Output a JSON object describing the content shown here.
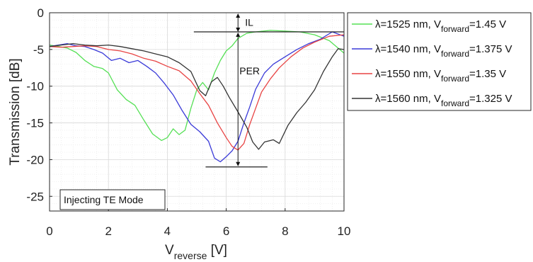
{
  "chart_data": {
    "type": "line",
    "xlabel_main": "V",
    "xlabel_sub": "reverse",
    "xlabel_unit": " [V]",
    "ylabel": "Transmission [dB]",
    "xlim": [
      0,
      10
    ],
    "ylim": [
      -27,
      0
    ],
    "x_ticks": [
      0,
      2,
      4,
      6,
      8,
      10
    ],
    "x_tick_labels": [
      "0",
      "2",
      "4",
      "6",
      "8",
      "10"
    ],
    "y_ticks": [
      0,
      -5,
      -10,
      -15,
      -20,
      -25
    ],
    "y_tick_labels": [
      "0",
      "-5",
      "-10",
      "-15",
      "-20",
      "-25"
    ],
    "grid": true,
    "legend_position": "outside-top-right",
    "series": [
      {
        "legend": {
          "lambda": "λ=1525 nm, V",
          "sub": "forward",
          "value": "=1.45 V"
        },
        "color": "#55e055",
        "points": [
          [
            0,
            -4.4
          ],
          [
            0.3,
            -4.6
          ],
          [
            0.6,
            -4.8
          ],
          [
            0.9,
            -5.4
          ],
          [
            1.2,
            -6.5
          ],
          [
            1.5,
            -7.3
          ],
          [
            1.8,
            -7.6
          ],
          [
            2.0,
            -8.2
          ],
          [
            2.3,
            -10.5
          ],
          [
            2.6,
            -11.8
          ],
          [
            2.9,
            -12.6
          ],
          [
            3.2,
            -14.6
          ],
          [
            3.5,
            -16.5
          ],
          [
            3.8,
            -17.4
          ],
          [
            4.0,
            -17.0
          ],
          [
            4.2,
            -15.8
          ],
          [
            4.4,
            -16.6
          ],
          [
            4.6,
            -16.0
          ],
          [
            4.8,
            -13.0
          ],
          [
            5.0,
            -10.5
          ],
          [
            5.2,
            -9.5
          ],
          [
            5.4,
            -10.5
          ],
          [
            5.6,
            -8.2
          ],
          [
            5.8,
            -6.5
          ],
          [
            6.0,
            -5.2
          ],
          [
            6.2,
            -4.5
          ],
          [
            6.4,
            -3.5
          ],
          [
            6.7,
            -2.8
          ],
          [
            7.0,
            -2.6
          ],
          [
            7.5,
            -2.4
          ],
          [
            8.0,
            -2.5
          ],
          [
            8.5,
            -2.6
          ],
          [
            9.0,
            -3.0
          ],
          [
            9.5,
            -3.8
          ],
          [
            10,
            -5.5
          ]
        ]
      },
      {
        "legend": {
          "lambda": "λ=1540 nm, V",
          "sub": "forward",
          "value": "=1.375 V"
        },
        "color": "#3a3ad8",
        "points": [
          [
            0,
            -4.6
          ],
          [
            0.3,
            -4.4
          ],
          [
            0.6,
            -4.2
          ],
          [
            0.9,
            -4.5
          ],
          [
            1.2,
            -4.6
          ],
          [
            1.5,
            -5.0
          ],
          [
            1.8,
            -5.5
          ],
          [
            2.1,
            -6.5
          ],
          [
            2.4,
            -6.2
          ],
          [
            2.7,
            -6.8
          ],
          [
            3.0,
            -6.5
          ],
          [
            3.3,
            -7.3
          ],
          [
            3.6,
            -8.2
          ],
          [
            3.9,
            -9.6
          ],
          [
            4.2,
            -11.2
          ],
          [
            4.5,
            -13.3
          ],
          [
            4.8,
            -15.2
          ],
          [
            5.1,
            -16.2
          ],
          [
            5.4,
            -17.5
          ],
          [
            5.6,
            -19.8
          ],
          [
            5.8,
            -20.3
          ],
          [
            6.0,
            -19.6
          ],
          [
            6.2,
            -18.8
          ],
          [
            6.4,
            -17.5
          ],
          [
            6.6,
            -15.0
          ],
          [
            6.8,
            -12.8
          ],
          [
            7.0,
            -10.4
          ],
          [
            7.3,
            -8.2
          ],
          [
            7.6,
            -7.0
          ],
          [
            8.0,
            -6.0
          ],
          [
            8.4,
            -5.0
          ],
          [
            8.8,
            -4.2
          ],
          [
            9.2,
            -3.6
          ],
          [
            9.6,
            -2.6
          ],
          [
            10,
            -3.2
          ]
        ]
      },
      {
        "legend": {
          "lambda": "λ=1550 nm, V",
          "sub": "forward",
          "value": "=1.35 V"
        },
        "color": "#e84444",
        "points": [
          [
            0,
            -4.6
          ],
          [
            0.4,
            -4.7
          ],
          [
            0.8,
            -4.6
          ],
          [
            1.2,
            -4.5
          ],
          [
            1.6,
            -4.6
          ],
          [
            2.0,
            -5.0
          ],
          [
            2.4,
            -5.2
          ],
          [
            2.8,
            -5.6
          ],
          [
            3.2,
            -6.2
          ],
          [
            3.6,
            -6.6
          ],
          [
            4.0,
            -7.3
          ],
          [
            4.4,
            -7.9
          ],
          [
            4.8,
            -9.3
          ],
          [
            5.1,
            -11.0
          ],
          [
            5.4,
            -12.6
          ],
          [
            5.7,
            -15.0
          ],
          [
            6.0,
            -17.0
          ],
          [
            6.2,
            -18.2
          ],
          [
            6.4,
            -18.7
          ],
          [
            6.6,
            -17.8
          ],
          [
            6.8,
            -15.2
          ],
          [
            7.0,
            -13.0
          ],
          [
            7.2,
            -10.8
          ],
          [
            7.5,
            -9.0
          ],
          [
            7.8,
            -7.5
          ],
          [
            8.2,
            -6.0
          ],
          [
            8.6,
            -4.8
          ],
          [
            9.0,
            -4.0
          ],
          [
            9.5,
            -3.2
          ],
          [
            10,
            -3.0
          ]
        ]
      },
      {
        "legend": {
          "lambda": "λ=1560 nm, V",
          "sub": "forward",
          "value": "=1.325 V"
        },
        "color": "#333333",
        "points": [
          [
            0,
            -4.6
          ],
          [
            0.4,
            -4.4
          ],
          [
            0.8,
            -4.2
          ],
          [
            1.2,
            -4.4
          ],
          [
            1.6,
            -4.5
          ],
          [
            2.0,
            -4.4
          ],
          [
            2.4,
            -4.6
          ],
          [
            2.8,
            -4.9
          ],
          [
            3.2,
            -5.2
          ],
          [
            3.6,
            -5.6
          ],
          [
            4.0,
            -6.0
          ],
          [
            4.4,
            -6.8
          ],
          [
            4.8,
            -8.0
          ],
          [
            5.1,
            -10.6
          ],
          [
            5.3,
            -11.3
          ],
          [
            5.5,
            -9.4
          ],
          [
            5.7,
            -8.8
          ],
          [
            5.9,
            -10.0
          ],
          [
            6.1,
            -11.5
          ],
          [
            6.4,
            -13.5
          ],
          [
            6.7,
            -15.6
          ],
          [
            6.9,
            -17.6
          ],
          [
            7.1,
            -18.6
          ],
          [
            7.3,
            -17.6
          ],
          [
            7.6,
            -17.3
          ],
          [
            7.8,
            -17.8
          ],
          [
            8.1,
            -15.3
          ],
          [
            8.4,
            -13.6
          ],
          [
            8.7,
            -12.2
          ],
          [
            9.0,
            -10.5
          ],
          [
            9.3,
            -8.0
          ],
          [
            9.6,
            -6.0
          ],
          [
            9.8,
            -4.9
          ],
          [
            10,
            -5.0
          ]
        ]
      }
    ],
    "annotations": {
      "il_label": "IL",
      "per_label": "PER",
      "il_level": -2.6,
      "per_level": -21.0,
      "arrow_x": 6.4,
      "il_line_x": [
        4.9,
        10
      ],
      "per_line_x": [
        5.3,
        7.4
      ],
      "box_text": "Injecting TE Mode"
    }
  }
}
